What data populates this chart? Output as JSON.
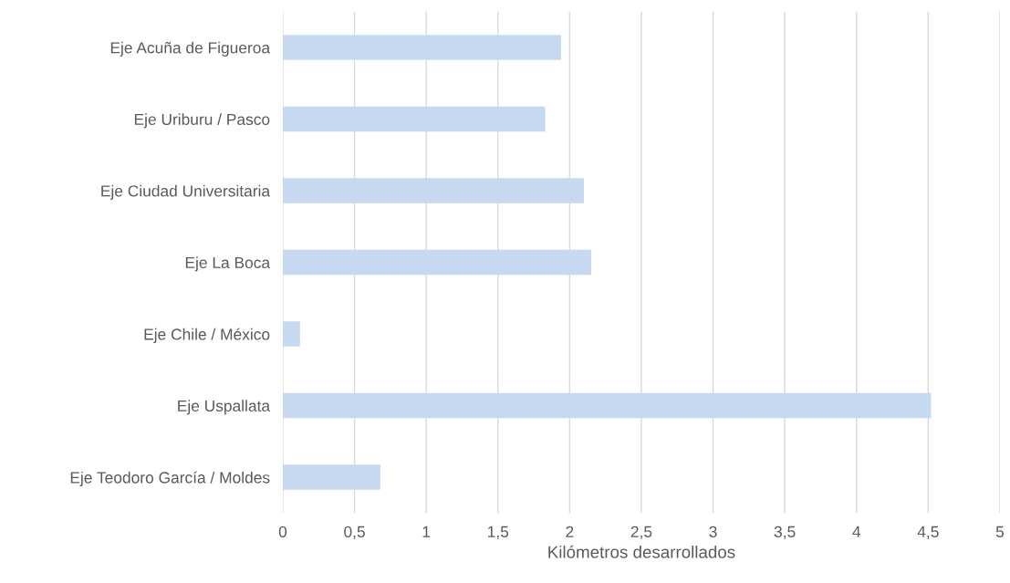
{
  "chart_data": {
    "type": "bar",
    "orientation": "horizontal",
    "xlabel": "Kilómetros desarrollados",
    "categories": [
      "Eje Acuña de Figueroa",
      "Eje Uriburu / Pasco",
      "Eje Ciudad Universitaria",
      "Eje La Boca",
      "Eje Chile / México",
      "Eje Uspallata",
      "Eje Teodoro García / Moldes"
    ],
    "values": [
      1.94,
      1.83,
      2.1,
      2.15,
      0.12,
      4.52,
      0.68
    ],
    "color": "#c6d9f1",
    "xlim": [
      0,
      5
    ],
    "xticks": [
      0,
      {
        "value": 0.5,
        "label": "0,5"
      },
      1,
      {
        "value": 1.5,
        "label": "1,5"
      },
      2,
      {
        "value": 2.5,
        "label": "2,5"
      },
      3,
      {
        "value": 3.5,
        "label": "3,5"
      },
      4,
      {
        "value": 4.5,
        "label": "4,5"
      },
      5
    ],
    "grid": "x"
  }
}
